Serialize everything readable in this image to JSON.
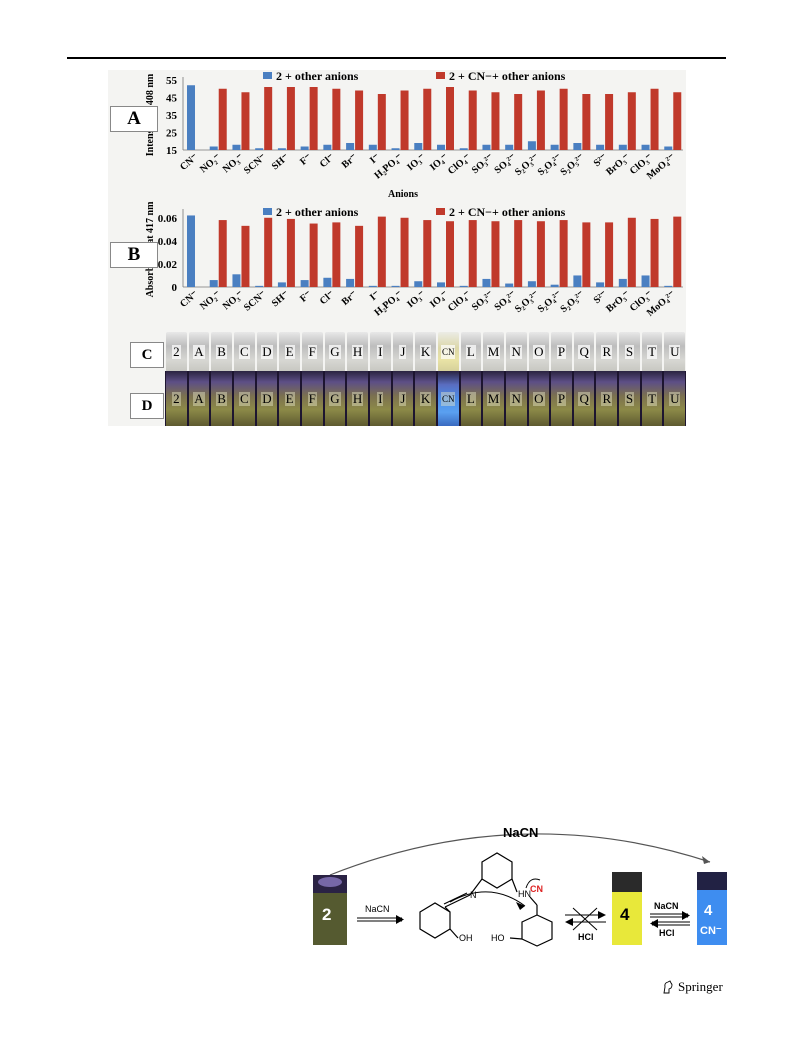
{
  "figure": {
    "panelA": {
      "letter": "A",
      "ylabel": "Intensity at 408 nm",
      "xlabel": "Anions",
      "legend": [
        "2 + other anions",
        "2 + CN−+ other anions"
      ]
    },
    "panelB": {
      "letter": "B",
      "ylabel": "Absorbance at 417 nm",
      "legend": [
        "2 + other anions",
        "2 + CN−+ other anions"
      ]
    },
    "panelC": {
      "letter": "C",
      "tubes": [
        "2",
        "A",
        "B",
        "C",
        "D",
        "E",
        "F",
        "G",
        "H",
        "I",
        "J",
        "K",
        "CN",
        "L",
        "M",
        "N",
        "O",
        "P",
        "Q",
        "R",
        "S",
        "T",
        "U"
      ]
    },
    "panelD": {
      "letter": "D",
      "tubes": [
        "2",
        "A",
        "B",
        "C",
        "D",
        "E",
        "F",
        "G",
        "H",
        "I",
        "J",
        "K",
        "CN",
        "L",
        "M",
        "N",
        "O",
        "P",
        "Q",
        "R",
        "S",
        "T",
        "U"
      ]
    }
  },
  "chart_data": [
    {
      "type": "bar",
      "xlabel": "Anions",
      "ylabel": "Intensity at 408 nm",
      "ylim": [
        15,
        55
      ],
      "yticks": [
        15,
        25,
        35,
        45,
        55
      ],
      "categories": [
        "CN⁻",
        "NO₂⁻",
        "NO₃⁻",
        "SCN⁻",
        "SH⁻",
        "F⁻",
        "Cl⁻",
        "Br⁻",
        "I⁻",
        "H₂PO₄⁻",
        "IO₃⁻",
        "IO₄⁻",
        "ClO₄⁻",
        "SO₃²⁻",
        "SO₄²⁻",
        "S₂O₃²⁻",
        "S₂O₄²⁻",
        "S₂O₅²⁻",
        "S²⁻",
        "BrO₃⁻",
        "ClO₃⁻",
        "MoO₄²⁻"
      ],
      "series": [
        {
          "name": "2 + other anions",
          "color": "#4a7fc1",
          "values": [
            52,
            17,
            18,
            16,
            16,
            17,
            18,
            19,
            18,
            16,
            19,
            18,
            16,
            18,
            18,
            20,
            18,
            19,
            18,
            18,
            18,
            17
          ]
        },
        {
          "name": "2 + CN−+ other anions",
          "color": "#c0392b",
          "values": [
            null,
            50,
            48,
            51,
            51,
            51,
            50,
            49,
            47,
            49,
            50,
            51,
            49,
            48,
            47,
            49,
            50,
            47,
            47,
            48,
            50,
            48
          ]
        }
      ]
    },
    {
      "type": "bar",
      "ylabel": "Absorbance at 417 nm",
      "ylim": [
        0,
        0.065
      ],
      "yticks": [
        0,
        0.02,
        0.04,
        0.06
      ],
      "ytick_labels": [
        "0",
        "0.02",
        "0.04",
        "0.06"
      ],
      "categories": [
        "CN⁻",
        "NO₂⁻",
        "NO₃⁻",
        "SCN⁻",
        "SH⁻",
        "F⁻",
        "Cl⁻",
        "Br⁻",
        "I⁻",
        "H₂PO₄⁻",
        "IO₃⁻",
        "IO₄⁻",
        "ClO₄⁻",
        "SO₃²⁻",
        "SO₄²⁻",
        "S₂O₃²⁻",
        "S₂O₄²⁻",
        "S₂O₅²⁻",
        "S²⁻",
        "BrO₃⁻",
        "ClO₃⁻",
        "MoO₄²⁻"
      ],
      "series": [
        {
          "name": "2 + other anions",
          "color": "#4a7fc1",
          "values": [
            0.062,
            0.006,
            0.011,
            0.001,
            0.004,
            0.006,
            0.008,
            0.007,
            0.001,
            0.001,
            0.005,
            0.004,
            0.001,
            0.007,
            0.003,
            0.005,
            0.002,
            0.01,
            0.004,
            0.007,
            0.01,
            0.001
          ]
        },
        {
          "name": "2 + CN−+ other anions",
          "color": "#c0392b",
          "values": [
            null,
            0.058,
            0.053,
            0.06,
            0.059,
            0.055,
            0.056,
            0.053,
            0.061,
            0.06,
            0.058,
            0.057,
            0.058,
            0.057,
            0.058,
            0.057,
            0.058,
            0.056,
            0.056,
            0.06,
            0.059,
            0.061
          ]
        }
      ]
    }
  ],
  "scheme": {
    "top_reagent": "NaCN",
    "forward_reagent": "NaCN",
    "vial2": "2",
    "vial4": "4",
    "vial4cn": "4",
    "vial4cn_sub": "CN⁻",
    "rev_top": "NaCN",
    "rev_bottom": "HCl",
    "cross_bottom": "HCl",
    "atom_N": "N",
    "atom_HN": "HN",
    "atom_CN": "CN",
    "atom_OH": "OH",
    "atom_HO": "HO"
  },
  "footer": {
    "publisher": "Springer"
  }
}
